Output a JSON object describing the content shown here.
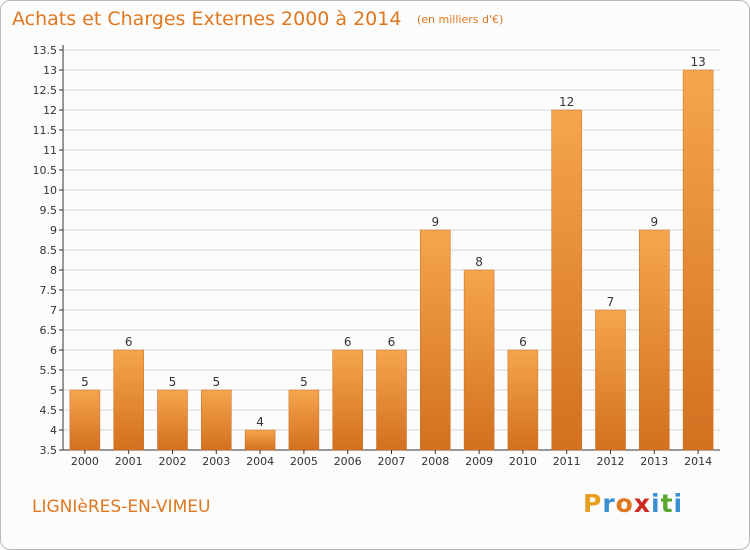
{
  "header": {
    "title": "Achats et Charges Externes 2000 à 2014",
    "subtitle": "(en milliers d'€)"
  },
  "footer": {
    "commune": "LIGNIèRES-EN-VIMEU",
    "logo_text": "Proxiti",
    "logo_colors": [
      "#e8a020",
      "#3a8fd0",
      "#e07820",
      "#cc2a20",
      "#3a8fd0",
      "#5aa830",
      "#3a8fd0"
    ]
  },
  "chart_data": {
    "type": "bar",
    "categories": [
      "2000",
      "2001",
      "2002",
      "2003",
      "2004",
      "2005",
      "2006",
      "2007",
      "2008",
      "2009",
      "2010",
      "2011",
      "2012",
      "2013",
      "2014"
    ],
    "values": [
      5,
      6,
      5,
      5,
      4,
      5,
      6,
      6,
      9,
      8,
      6,
      12,
      7,
      9,
      13
    ],
    "value_labels": [
      "5",
      "6",
      "5",
      "5",
      "4",
      "5",
      "6",
      "6",
      "9",
      "8",
      "6",
      "12",
      "7",
      "9",
      "13"
    ],
    "y_ticks": [
      "3.5",
      "4",
      "4.5",
      "5",
      "5.5",
      "6",
      "6.5",
      "7",
      "7.5",
      "8",
      "8.5",
      "9",
      "9.5",
      "10",
      "10.5",
      "11",
      "11.5",
      "12",
      "12.5",
      "13",
      "13.5"
    ],
    "ylim": [
      3.5,
      13.5
    ],
    "grid": true,
    "colors": {
      "bar_top": "#f6a54e",
      "bar_bottom": "#d27020",
      "bar_edge": "#c86a1c",
      "grid": "#d8d8d8",
      "axis": "#333333",
      "text": "#333333"
    }
  }
}
